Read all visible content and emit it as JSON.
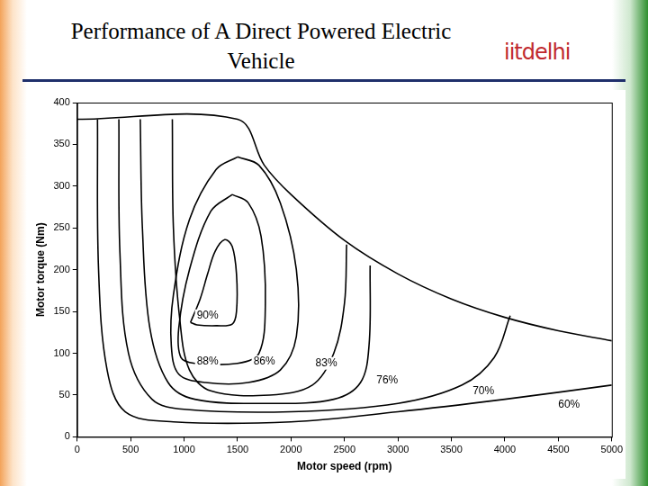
{
  "header": {
    "title": "Performance of A Direct Powered Electric Vehicle",
    "logo": "iitdelhi"
  },
  "chart_data": {
    "type": "line",
    "xlabel": "Motor speed (rpm)",
    "ylabel": "Motor torque (Nm)",
    "xlim": [
      0,
      5000
    ],
    "ylim": [
      0,
      400
    ],
    "xticks": [
      0,
      500,
      1000,
      1500,
      2000,
      2500,
      3000,
      3500,
      4000,
      4500,
      5000
    ],
    "yticks": [
      0,
      50,
      100,
      150,
      200,
      250,
      300,
      350,
      400
    ],
    "grid": false,
    "series": [
      {
        "color": "#000000",
        "x": [
          0,
          1500,
          1750,
          2000,
          2500,
          3000,
          3500,
          4000,
          4500,
          5000
        ],
        "values": [
          380,
          380,
          325,
          290,
          235,
          195,
          165,
          143,
          127,
          115
        ]
      },
      {
        "name": "90%",
        "color": "#000000",
        "label_at": [
          1220,
          145
        ],
        "x": [
          1060,
          1150,
          1220,
          1290,
          1380,
          1450,
          1490,
          1490,
          1450,
          1300,
          1120,
          1060
        ],
        "values": [
          137,
          165,
          195,
          222,
          236,
          228,
          195,
          150,
          135,
          133,
          134,
          137
        ]
      },
      {
        "name": "88%",
        "color": "#000000",
        "label_at": [
          1220,
          90
        ],
        "x": [
          1450,
          1250,
          1050,
          950,
          970,
          1100,
          1500,
          1700,
          1760,
          1720,
          1600,
          1450
        ],
        "values": [
          290,
          270,
          200,
          130,
          95,
          88,
          88,
          100,
          160,
          240,
          280,
          290
        ]
      },
      {
        "name": "86%",
        "color": "#000000",
        "label_at": [
          1750,
          90
        ],
        "x": [
          1500,
          1300,
          1050,
          900,
          880,
          950,
          1200,
          1600,
          1900,
          2050,
          2050,
          1900,
          1700,
          1500
        ],
        "values": [
          335,
          320,
          260,
          170,
          110,
          75,
          65,
          65,
          80,
          120,
          200,
          280,
          325,
          335
        ]
      },
      {
        "name": "83%",
        "color": "#000000",
        "label_at": [
          2330,
          88
        ],
        "x": [
          890,
          900,
          960,
          1050,
          1250,
          1800,
          2200,
          2400,
          2500,
          2520
        ],
        "values": [
          380,
          250,
          140,
          80,
          55,
          50,
          62,
          100,
          160,
          230
        ]
      },
      {
        "name": "76%",
        "color": "#000000",
        "label_at": [
          2900,
          68
        ],
        "x": [
          590,
          610,
          680,
          850,
          1100,
          1800,
          2400,
          2650,
          2730,
          2740
        ],
        "values": [
          380,
          250,
          130,
          65,
          45,
          40,
          45,
          65,
          110,
          205
        ]
      },
      {
        "name": "70%",
        "color": "#000000",
        "label_at": [
          3800,
          55
        ],
        "x": [
          390,
          400,
          480,
          700,
          1000,
          2000,
          3000,
          3600,
          3900,
          4050
        ],
        "values": [
          380,
          220,
          100,
          45,
          33,
          30,
          40,
          62,
          95,
          145
        ]
      },
      {
        "name": "60%",
        "color": "#000000",
        "label_at": [
          4600,
          38
        ],
        "x": [
          190,
          200,
          280,
          450,
          900,
          2000,
          3000,
          4000,
          5000
        ],
        "values": [
          380,
          200,
          80,
          30,
          18,
          18,
          30,
          45,
          62
        ]
      }
    ]
  }
}
